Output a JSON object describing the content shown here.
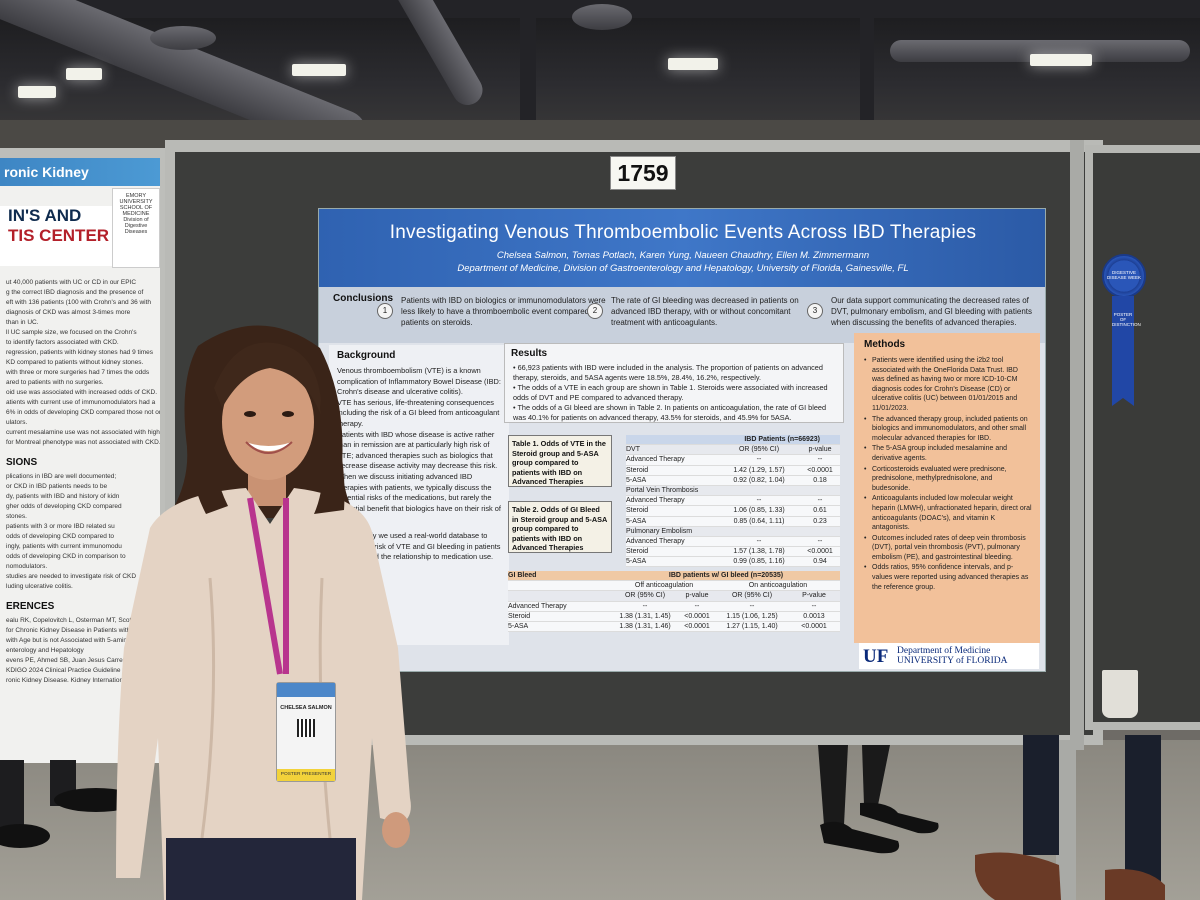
{
  "booth_number": "1759",
  "poster": {
    "title": "Investigating Venous Thromboembolic Events Across IBD Therapies",
    "authors": "Chelsea Salmon, Tomas Potlach, Karen Yung, Naueen Chaudhry, Ellen M. Zimmermann",
    "department": "Department of Medicine, Division of Gastroenterology and Hepatology, University of Florida, Gainesville, FL",
    "conclusions": {
      "heading": "Conclusions",
      "items": [
        {
          "num": "1",
          "text": "Patients with IBD on biologics or immunomodulators were less likely to have a thromboembolic event compared to patients on steroids."
        },
        {
          "num": "2",
          "text": "The rate of GI bleeding was decreased in patients on advanced IBD therapy, with or without concomitant treatment with anticoagulants."
        },
        {
          "num": "3",
          "text": "Our data support communicating the decreased rates of DVT, pulmonary embolism, and GI bleeding with patients when discussing the benefits of advanced therapies."
        }
      ]
    },
    "background": {
      "heading": "Background",
      "paragraphs": [
        "Venous thromboembolism (VTE) is a known complication of Inflammatory Bowel Disease (IBD: Crohn's disease and ulcerative colitis).",
        "VTE has serious, life-threatening consequences including the risk of a GI bleed from anticoagulant therapy.",
        "Patients with IBD whose disease is active rather than in remission are at particularly high risk of VTE; advanced therapies such as biologics that decrease disease activity may decrease this risk.",
        "When we discuss initiating advanced IBD therapies with patients, we typically discuss the potential risks of the medications, but rarely the potential benefit that biologics have on their risk of VTE.",
        "In this study we used a real-world database to assess the risk of VTE and GI bleeding in patients with IBD and the relationship to medication use."
      ]
    },
    "results": {
      "heading": "Results",
      "bullets": [
        "66,923 patients with IBD were included in the analysis. The proportion of patients on advanced therapy, steroids, and 5ASA agents were 18.5%, 28.4%, 16.2%, respectively.",
        "The odds of a VTE in each group are shown in Table 1. Steroids were associated with increased odds of DVT and PE compared to advanced therapy.",
        "The odds of a GI bleed are shown in Table 2. In patients on anticoagulation, the rate of GI bleed was 40.1% for patients on advanced therapy, 43.5% for steroids, and 45.9% for 5ASA."
      ]
    },
    "table1": {
      "label": "Table 1. Odds of VTE in the Steroid group and 5-ASA group compared to patients with IBD on Advanced Therapies",
      "title": "IBD Patients (n=66923)",
      "columns": [
        "",
        "OR (95% CI)",
        "p-value"
      ],
      "sections": [
        {
          "name": "DVT",
          "rows": [
            [
              "Advanced Therapy",
              "--",
              "--"
            ],
            [
              "Steroid",
              "1.42 (1.29, 1.57)",
              "<0.0001"
            ],
            [
              "5-ASA",
              "0.92 (0.82, 1.04)",
              "0.18"
            ]
          ]
        },
        {
          "name": "Portal Vein Thrombosis",
          "rows": [
            [
              "Advanced Therapy",
              "--",
              "--"
            ],
            [
              "Steroid",
              "1.06 (0.85, 1.33)",
              "0.61"
            ],
            [
              "5-ASA",
              "0.85 (0.64, 1.11)",
              "0.23"
            ]
          ]
        },
        {
          "name": "Pulmonary Embolism",
          "rows": [
            [
              "Advanced Therapy",
              "--",
              "--"
            ],
            [
              "Steroid",
              "1.57 (1.38, 1.78)",
              "<0.0001"
            ],
            [
              "5-ASA",
              "0.99 (0.85, 1.16)",
              "0.94"
            ]
          ]
        }
      ]
    },
    "table2": {
      "label": "Table 2. Odds of GI Bleed in Steroid group and 5-ASA group compared to patients with IBD on Advanced Therapies",
      "title": "IBD patients w/ GI bleed (n=20535)",
      "row_label": "GI Bleed",
      "groups": [
        "Off anticoagulation",
        "On anticoagulation"
      ],
      "columns": [
        "",
        "OR (95% CI)",
        "p-value",
        "OR (95% CI)",
        "P-value"
      ],
      "rows": [
        [
          "Advanced Therapy",
          "--",
          "--",
          "--",
          "--"
        ],
        [
          "Steroid",
          "1.38 (1.31, 1.45)",
          "<0.0001",
          "1.15 (1.06, 1.25)",
          "0.0013"
        ],
        [
          "5-ASA",
          "1.38 (1.31, 1.46)",
          "<0.0001",
          "1.27 (1.15, 1.40)",
          "<0.0001"
        ]
      ]
    },
    "methods": {
      "heading": "Methods",
      "bullets": [
        "Patients were identified using the i2b2 tool associated with the OneFlorida Data Trust. IBD was defined as having two or more ICD-10-CM diagnosis codes for Crohn's Disease (CD) or ulcerative colitis (UC) between 01/01/2015 and 11/01/2023.",
        "The advanced therapy group, included patients on biologics and immunomodulators, and other small molecular advanced therapies for IBD.",
        "The 5-ASA group included mesalamine and derivative agents.",
        "Corticosteroids evaluated were prednisone, prednisolone, methylprednisolone, and budesonide.",
        "Anticoagulants included low molecular weight heparin (LMWH), unfractionated heparin, direct oral anticoagulants (DOAC's), and vitamin K antagonists.",
        "Outcomes included rates of deep vein thrombosis (DVT), portal vein thrombosis (PVT), pulmonary embolism (PE), and gastrointestinal bleeding.",
        "Odds ratios, 95% confidence intervals, and p-values were reported using advanced therapies as the reference group."
      ]
    },
    "footer": {
      "logo": "UF",
      "dept_line1": "Department of Medicine",
      "dept_line2": "UNIVERSITY of FLORIDA"
    }
  },
  "left_poster": {
    "header": "ronic Kidney",
    "band_line1": "IN'S AND",
    "band_line2": "TIS CENTER",
    "logo": "EMORY UNIVERSITY SCHOOL OF MEDICINE Division of Digestive Diseases",
    "lines1": [
      "ut 40,000 patients with UC or CD in our EPIC",
      "g the correct IBD diagnosis and the presence of",
      "eft with 136 patients (100 with Crohn's and 36 with",
      "diagnosis of CKD was almost 3-times more",
      "than in UC.",
      "ll UC sample size, we focused on the Crohn's",
      "to identify factors associated with CKD.",
      "regression, patients with kidney stones had 9 times",
      "KD compared to patients without kidney stones.",
      "with three or more surgeries had 7 times the odds",
      "ared to patients with no surgeries.",
      "oid use was associated with increased odds of CKD.",
      "atients with current use of immunomodulators had a",
      "6% in odds of developing CKD compared those not on",
      "ulators.",
      "current mesalamine use was not associated with higher",
      "for Montreal phenotype was not associated with CKD."
    ],
    "heading2": "SIONS",
    "lines2": [
      "plications in IBD are well documented;",
      "or CKD in IBD patients needs to be",
      "dy, patients with IBD and history of kidn",
      "gher odds of developing CKD compared",
      "stones.",
      "patients with 3 or more IBD related su",
      "odds of developing CKD compared to",
      "ingly, patients with current immunomodu",
      "odds of developing CKD in comparison to",
      "nomodulators.",
      "studies are needed to investigate risk of CKD",
      "luding ulcerative colitis."
    ],
    "heading3": "ERENCES",
    "refs": [
      "ealu RK, Copelovitch L, Osterman MT, Scott FI, Mamtan",
      "for Chronic Kidney Disease in Patients with Inflammatory",
      "with Age but is not Associated with 5-aminosalicylate Us",
      "enterology and Hepatology",
      "evens PE, Ahmed SB, Juan Jesus Carrero, Foster B, Franc",
      "KDIGO 2024 Clinical Practice Guideline for the Evaluation and",
      "ronic Kidney Disease. Kidney International. 2024 Apr 1;105(4)"
    ]
  },
  "ribbon": {
    "rosette_text": "DIGESTIVE DISEASE WEEK",
    "tail_text": "POSTER OF DISTINCTION"
  },
  "badge": {
    "name": "CHELSEA SALMON",
    "role": "POSTER PRESENTER"
  },
  "colors": {
    "poster_header": "#3f77c8",
    "methods_bg": "#f2c19a",
    "uf_blue": "#0a2a7a",
    "lanyard": "#b8358e",
    "blouse": "#e4d3c4"
  }
}
